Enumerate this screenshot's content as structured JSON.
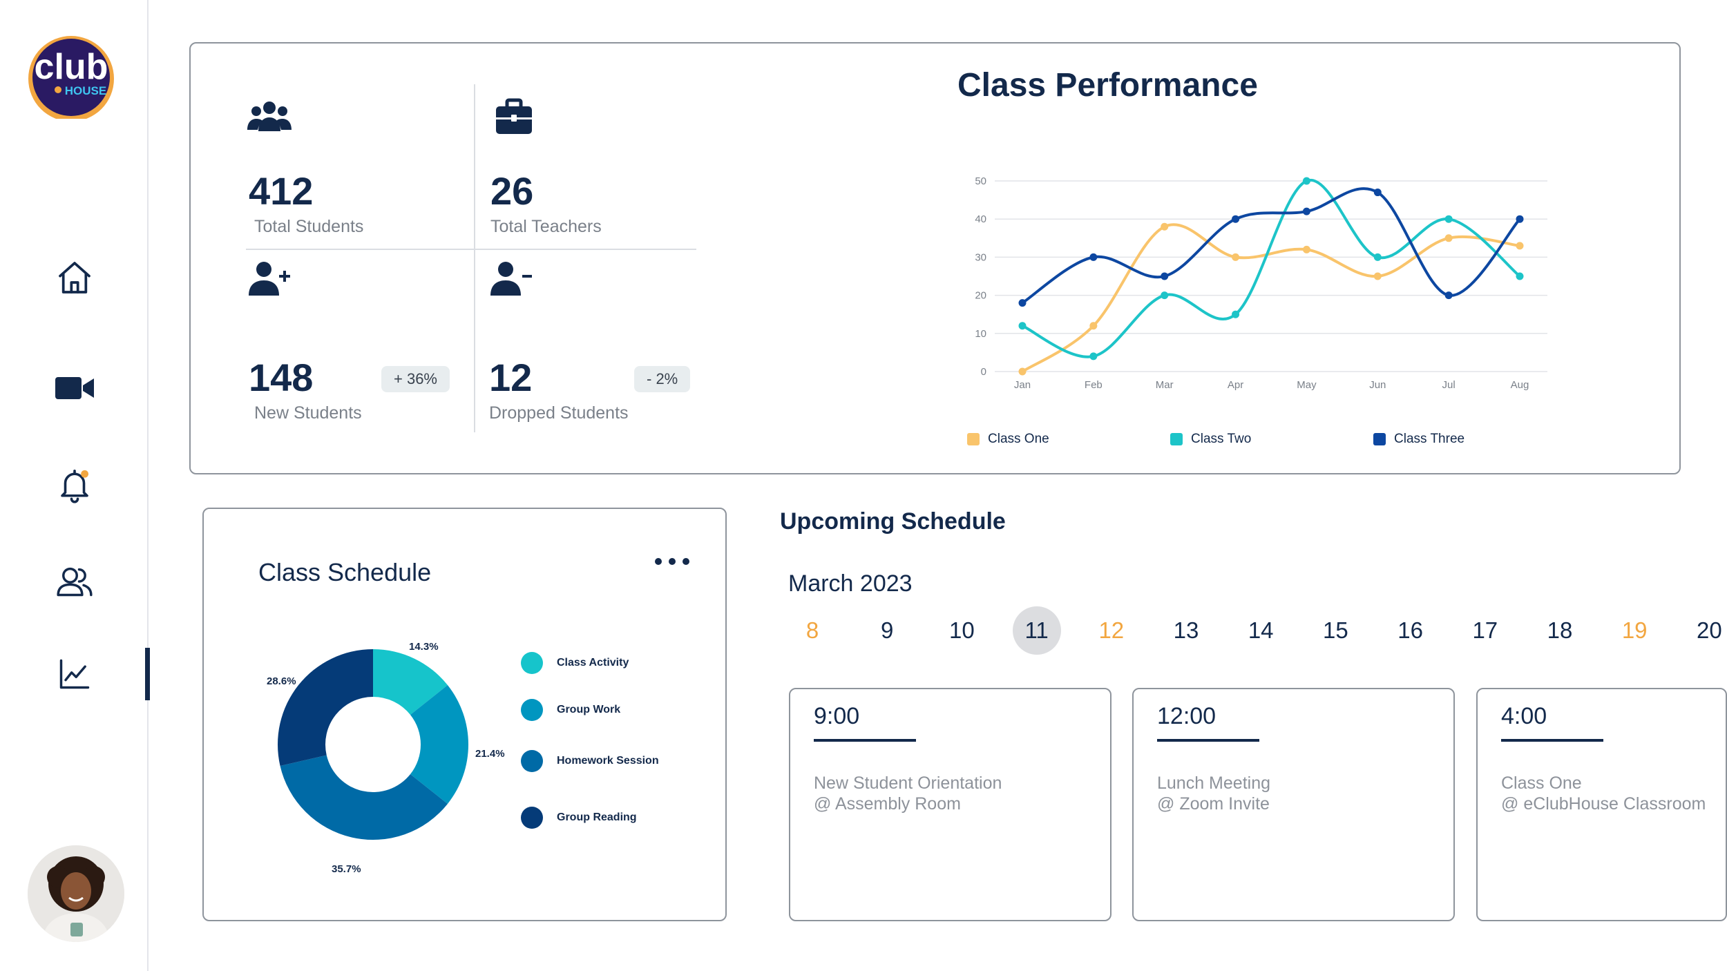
{
  "brand": {
    "logo_text": "club",
    "logo_sub": "HOUSE"
  },
  "nav": {
    "items": [
      {
        "name": "home",
        "icon": "home-icon"
      },
      {
        "name": "video",
        "icon": "video-camera-icon"
      },
      {
        "name": "notifications",
        "icon": "bell-icon"
      },
      {
        "name": "users",
        "icon": "users-icon"
      },
      {
        "name": "analytics",
        "icon": "line-chart-icon",
        "active": true
      }
    ]
  },
  "stats": {
    "total_students": {
      "value": "412",
      "label": "Total Students"
    },
    "total_teachers": {
      "value": "26",
      "label": "Total Teachers"
    },
    "new_students": {
      "value": "148",
      "label": "New Students",
      "delta": "+ 36%"
    },
    "dropped_students": {
      "value": "12",
      "label": "Dropped Students",
      "delta": "- 2%"
    }
  },
  "performance": {
    "title": "Class Performance",
    "chart_data": {
      "type": "line",
      "x": [
        "Jan",
        "Feb",
        "Mar",
        "Apr",
        "May",
        "Jun",
        "Jul",
        "Aug"
      ],
      "ylim": [
        0,
        50
      ],
      "yticks": [
        "0",
        "10",
        "20",
        "30",
        "40",
        "50"
      ],
      "grid": true,
      "legend": "bottom",
      "series": [
        {
          "name": "Class One",
          "color": "#f9c46b",
          "values": [
            0,
            12,
            38,
            30,
            32,
            25,
            35,
            33
          ]
        },
        {
          "name": "Class Two",
          "color": "#1dc4c8",
          "values": [
            12,
            4,
            20,
            15,
            50,
            30,
            40,
            25
          ]
        },
        {
          "name": "Class Three",
          "color": "#0d47a1",
          "values": [
            18,
            30,
            25,
            40,
            42,
            47,
            20,
            40
          ]
        }
      ]
    }
  },
  "class_schedule": {
    "title": "Class Schedule",
    "chart_data": {
      "type": "pie",
      "donut": true,
      "categories": [
        "Class Activity",
        "Group Work",
        "Homework Session",
        "Group Reading"
      ],
      "values": [
        14.3,
        21.4,
        35.7,
        28.6
      ],
      "labels": [
        "14.3%",
        "21.4%",
        "35.7%",
        "28.6%"
      ],
      "colors": [
        "#16c4cb",
        "#0096c0",
        "#006aa6",
        "#053b78"
      ]
    }
  },
  "upcoming": {
    "title": "Upcoming Schedule",
    "month": "March 2023",
    "days": [
      {
        "label": "8",
        "weekend": true
      },
      {
        "label": "9"
      },
      {
        "label": "10"
      },
      {
        "label": "11",
        "selected": true
      },
      {
        "label": "12",
        "weekend": true
      },
      {
        "label": "13"
      },
      {
        "label": "14"
      },
      {
        "label": "15"
      },
      {
        "label": "16"
      },
      {
        "label": "17"
      },
      {
        "label": "18"
      },
      {
        "label": "19",
        "weekend": true
      },
      {
        "label": "20"
      }
    ],
    "events": [
      {
        "time": "9:00",
        "title": "New Student Orientation",
        "location": "@ Assembly Room"
      },
      {
        "time": "12:00",
        "title": "Lunch Meeting",
        "location": "@ Zoom Invite"
      },
      {
        "time": "4:00",
        "title": "Class One",
        "location": "@ eClubHouse Classroom"
      }
    ]
  },
  "colors": {
    "primary": "#13294b",
    "weekend": "#f2a640",
    "border": "#8e949c"
  }
}
